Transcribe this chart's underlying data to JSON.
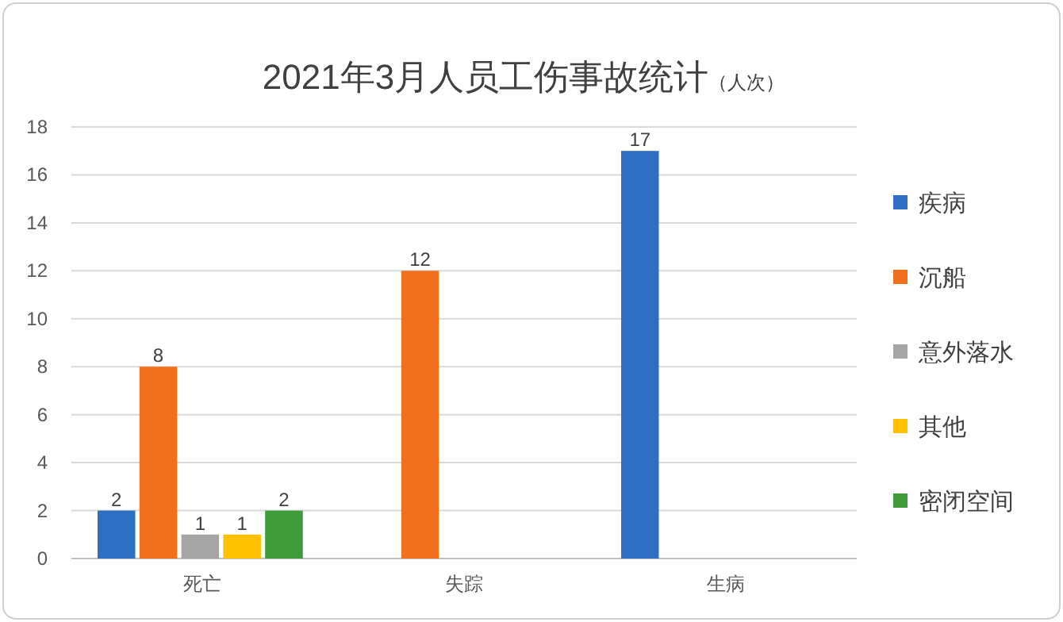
{
  "chart_data": {
    "type": "bar",
    "title": "2021年3月人员工伤事故统计",
    "subtitle": "（人次）",
    "categories": [
      "死亡",
      "失踪",
      "生病"
    ],
    "series": [
      {
        "name": "疾病",
        "color": "#2e6fc4",
        "values": [
          2,
          null,
          17
        ]
      },
      {
        "name": "沉船",
        "color": "#f0701e",
        "values": [
          8,
          12,
          null
        ]
      },
      {
        "name": "意外落水",
        "color": "#a5a5a5",
        "values": [
          1,
          null,
          null
        ]
      },
      {
        "name": "其他",
        "color": "#ffc000",
        "values": [
          1,
          null,
          null
        ]
      },
      {
        "name": "密闭空间",
        "color": "#3f9a3a",
        "values": [
          2,
          null,
          null
        ]
      }
    ],
    "ylim": [
      0,
      18
    ],
    "yticks": [
      0,
      2,
      4,
      6,
      8,
      10,
      12,
      14,
      16,
      18
    ],
    "grid": "y",
    "legend": "right",
    "data_labels": true
  }
}
